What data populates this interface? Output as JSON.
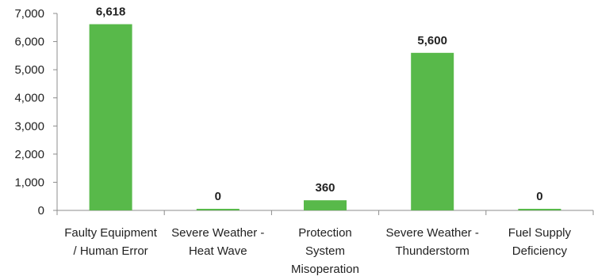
{
  "chart_data": {
    "type": "bar",
    "categories": [
      [
        "Faulty Equipment",
        "/ Human Error"
      ],
      [
        "Severe Weather -",
        "Heat Wave"
      ],
      [
        "Protection",
        "System",
        "Misoperation"
      ],
      [
        "Severe Weather -",
        "Thunderstorm"
      ],
      [
        "Fuel Supply",
        "Deficiency"
      ]
    ],
    "values": [
      6618,
      0,
      360,
      5600,
      0
    ],
    "data_labels": [
      "6,618",
      "0",
      "360",
      "5,600",
      "0"
    ],
    "yticks": [
      "0",
      "1,000",
      "2,000",
      "3,000",
      "4,000",
      "5,000",
      "6,000",
      "7,000"
    ],
    "ylim": [
      0,
      7000
    ],
    "title": "",
    "xlabel": "",
    "ylabel": "",
    "grid": false,
    "legend": "none",
    "bar_color": "#58b94a",
    "axis_color": "#8c8c8c"
  }
}
